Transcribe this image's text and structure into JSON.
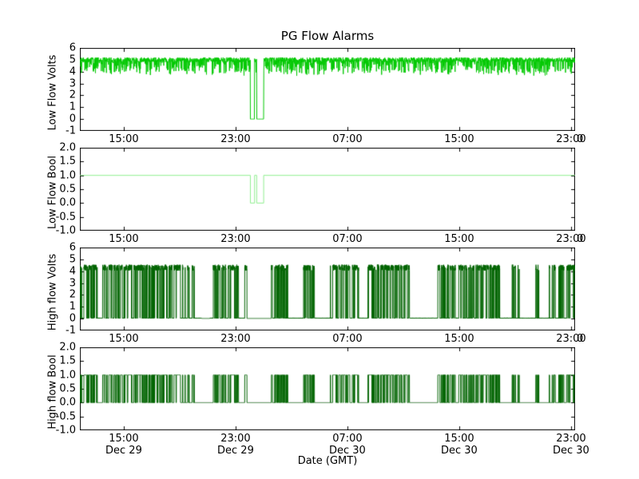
{
  "figure": {
    "title": "PG Flow Alarms",
    "xlabel": "Date (GMT)",
    "background": "#ffffff",
    "axis_color": "#000000"
  },
  "x_axis": {
    "span_hours": 35.43,
    "tick_hours": [
      3.14,
      11.14,
      19.14,
      27.14,
      35.14
    ],
    "tick_time_labels": [
      "15:00",
      "23:00",
      "07:00",
      "15:00",
      "23:00"
    ],
    "tick_date_labels": [
      "Dec 29",
      "Dec 29",
      "Dec 30",
      "Dec 30",
      "Dec 30"
    ],
    "clipped_right_label": "0"
  },
  "chart_data": [
    {
      "type": "line",
      "ylabel": "Low Flow Volts",
      "color": "#00c800",
      "ylim": [
        -1,
        6
      ],
      "ytick_labels": [
        "6",
        "5",
        "4",
        "3",
        "2",
        "1",
        "0",
        "-1"
      ],
      "grid": false,
      "legend": false,
      "signal": {
        "kind": "noisy_high",
        "baseline_volts": 5.0,
        "noise_half_band": 0.2,
        "dip_probability": 0.32,
        "dip_depth_max_volts": 1.2,
        "dropout_volts": 0.0,
        "dropouts_hours": [
          [
            12.2,
            12.5
          ],
          [
            12.65,
            13.15
          ]
        ]
      }
    },
    {
      "type": "line",
      "ylabel": "Low Flow Bool",
      "color": "#90ee90",
      "ylim": [
        -1,
        2
      ],
      "ytick_labels": [
        "2.0",
        "1.5",
        "1.0",
        "0.5",
        "0.0",
        "-0.5",
        "-1.0"
      ],
      "grid": false,
      "legend": false,
      "signal": {
        "kind": "boolean_constant_with_dropouts",
        "high": 1.0,
        "low": 0.0,
        "dropouts_hours": [
          [
            12.2,
            12.5
          ],
          [
            12.65,
            13.15
          ]
        ]
      }
    },
    {
      "type": "line",
      "ylabel": "High flow Volts",
      "color": "#006400",
      "ylim": [
        -1,
        6
      ],
      "ytick_labels": [
        "6",
        "5",
        "4",
        "3",
        "2",
        "1",
        "0",
        "-1"
      ],
      "grid": false,
      "legend": false,
      "signal": {
        "kind": "random_telegraph",
        "high_volts_range": [
          4.05,
          4.55
        ],
        "low_volts": 0.05,
        "mean_high_hours": 0.055,
        "mean_low_hours": 0.045,
        "long_low_probability": 0.1,
        "mean_long_low_hours": 0.5,
        "quiet_volts": 0.02,
        "quiet_hours": [
          [
            8.7,
            9.3
          ],
          [
            11.95,
            13.7
          ]
        ]
      }
    },
    {
      "type": "line",
      "ylabel": "High flow Bool",
      "color": "#006400",
      "ylim": [
        -1,
        2
      ],
      "ytick_labels": [
        "2.0",
        "1.5",
        "1.0",
        "0.5",
        "0.0",
        "-0.5",
        "-1.0"
      ],
      "grid": false,
      "legend": false,
      "signal": {
        "kind": "random_telegraph_bool",
        "high": 1.0,
        "low": 0.0,
        "quiet_hours": [
          [
            8.7,
            9.3
          ],
          [
            11.95,
            13.7
          ]
        ]
      }
    }
  ]
}
